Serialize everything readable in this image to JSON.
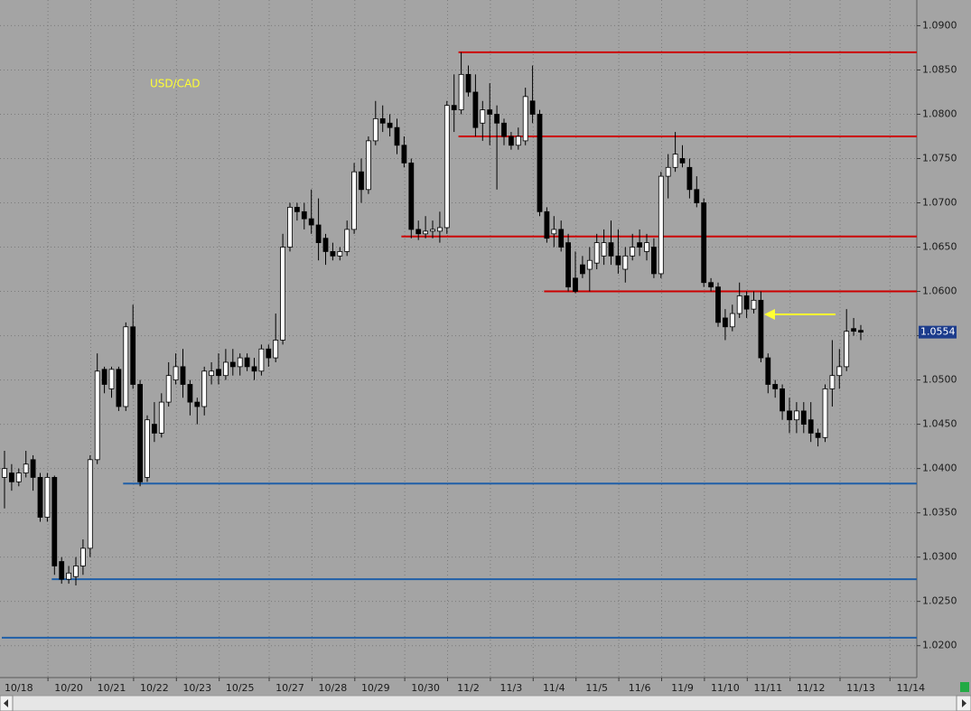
{
  "chart_data": {
    "type": "candlestick",
    "title": "USD/CAD",
    "categories": [
      null,
      null,
      "10/18",
      null,
      null,
      null,
      null,
      null,
      null,
      "10/20",
      null,
      null,
      null,
      null,
      null,
      "10/21",
      null,
      null,
      null,
      null,
      null,
      "10/22",
      null,
      null,
      null,
      null,
      null,
      "10/23",
      null,
      null,
      null,
      null,
      null,
      "10/25",
      null,
      null,
      null,
      null,
      null,
      null,
      "10/27",
      null,
      null,
      null,
      null,
      null,
      "10/28",
      null,
      null,
      null,
      null,
      null,
      "10/29",
      null,
      null,
      null,
      null,
      null,
      null,
      "10/30",
      null,
      null,
      null,
      null,
      null,
      "11/2",
      null,
      null,
      null,
      null,
      null,
      "11/3",
      null,
      null,
      null,
      null,
      null,
      "11/4",
      null,
      null,
      null,
      null,
      null,
      "11/5",
      null,
      null,
      null,
      null,
      null,
      "11/6",
      null,
      null,
      null,
      null,
      null,
      "11/9",
      null,
      null,
      null,
      null,
      null,
      "11/10",
      null,
      null,
      null,
      null,
      null,
      "11/11",
      null,
      null,
      null,
      null,
      null,
      "11/12",
      null,
      null,
      null,
      null,
      null,
      null,
      "11/13",
      null,
      null,
      null,
      null,
      null,
      null,
      "11/14"
    ],
    "open": [
      1.039,
      1.0395,
      1.0385,
      1.0395,
      1.041,
      1.039,
      1.0345,
      1.039,
      1.0295,
      1.0275,
      1.0278,
      1.029,
      1.031,
      1.041,
      1.0512,
      1.049,
      1.0512,
      1.047,
      1.056,
      1.0495,
      1.039,
      1.045,
      1.044,
      1.0475,
      1.05,
      1.0515,
      1.0495,
      1.0475,
      1.047,
      1.0505,
      1.0512,
      1.0505,
      1.052,
      1.0515,
      1.0525,
      1.0515,
      1.051,
      1.0535,
      1.0525,
      1.0545,
      1.065,
      1.0695,
      1.069,
      1.0682,
      1.0675,
      1.066,
      1.0645,
      1.064,
      1.0645,
      1.067,
      1.0735,
      1.0715,
      1.077,
      1.0795,
      1.079,
      1.0785,
      1.0765,
      1.0745,
      1.067,
      1.0665,
      1.0668,
      1.0668,
      1.0672,
      1.081,
      1.0805,
      1.0845,
      1.0825,
      1.079,
      1.0805,
      1.08,
      1.079,
      1.0775,
      1.0765,
      1.077,
      1.0815,
      1.08,
      1.069,
      1.0665,
      1.067,
      1.0655,
      1.0615,
      1.063,
      1.0625,
      1.0632,
      1.064,
      1.0655,
      1.064,
      1.0625,
      1.064,
      1.0655,
      1.0645,
      1.065,
      1.062,
      1.073,
      1.074,
      1.075,
      1.074,
      1.0715,
      1.07,
      1.061,
      1.0605,
      1.057,
      1.056,
      1.0575,
      1.0595,
      1.058,
      1.059,
      1.0525,
      1.0495,
      1.049,
      1.0465,
      1.0455,
      1.0465,
      1.0455,
      1.044,
      1.0435,
      1.049,
      1.0505,
      1.0515,
      1.0558,
      1.0556,
      null,
      null,
      null,
      null,
      null,
      null,
      null
    ],
    "high": [
      1.042,
      1.0405,
      1.04,
      1.042,
      1.0415,
      1.0395,
      1.0395,
      1.0392,
      1.03,
      1.029,
      1.03,
      1.032,
      1.0415,
      1.053,
      1.0515,
      1.0515,
      1.0515,
      1.0565,
      1.0585,
      1.05,
      1.046,
      1.0475,
      1.0485,
      1.052,
      1.053,
      1.0535,
      1.05,
      1.048,
      1.0515,
      1.052,
      1.053,
      1.0535,
      1.0535,
      1.053,
      1.053,
      1.0525,
      1.054,
      1.054,
      1.0575,
      1.0665,
      1.07,
      1.07,
      1.07,
      1.0715,
      1.0705,
      1.0665,
      1.0655,
      1.065,
      1.068,
      1.0745,
      1.075,
      1.0775,
      1.0815,
      1.081,
      1.08,
      1.0795,
      1.0775,
      1.075,
      1.068,
      1.0685,
      1.068,
      1.069,
      1.0815,
      1.0845,
      1.087,
      1.0855,
      1.0845,
      1.0815,
      1.0835,
      1.081,
      1.0795,
      1.078,
      1.0785,
      1.083,
      1.0855,
      1.0805,
      1.0695,
      1.0685,
      1.068,
      1.0665,
      1.0645,
      1.064,
      1.065,
      1.0665,
      1.067,
      1.068,
      1.067,
      1.065,
      1.0665,
      1.067,
      1.0665,
      1.066,
      1.0735,
      1.0755,
      1.078,
      1.0765,
      1.075,
      1.073,
      1.0705,
      1.0615,
      1.061,
      1.058,
      1.0585,
      1.061,
      1.06,
      1.06,
      1.06,
      1.053,
      1.05,
      1.0495,
      1.048,
      1.0475,
      1.0475,
      1.0475,
      1.0445,
      1.0495,
      1.0545,
      1.0535,
      1.058,
      1.057,
      1.0562,
      null,
      null,
      null,
      null,
      null,
      null,
      null
    ],
    "low": [
      1.0355,
      1.0375,
      1.038,
      1.039,
      1.0375,
      1.034,
      1.034,
      1.028,
      1.027,
      1.027,
      1.0268,
      1.028,
      1.03,
      1.0405,
      1.0485,
      1.048,
      1.0465,
      1.0465,
      1.049,
      1.038,
      1.0385,
      1.043,
      1.0435,
      1.047,
      1.0495,
      1.048,
      1.046,
      1.045,
      1.046,
      1.0495,
      1.0495,
      1.05,
      1.0505,
      1.0505,
      1.051,
      1.05,
      1.0505,
      1.0515,
      1.052,
      1.054,
      1.0645,
      1.068,
      1.067,
      1.0665,
      1.0635,
      1.063,
      1.0635,
      1.0635,
      1.064,
      1.0665,
      1.07,
      1.071,
      1.0765,
      1.078,
      1.0775,
      1.0755,
      1.074,
      1.066,
      1.0658,
      1.066,
      1.066,
      1.0655,
      1.0665,
      1.078,
      1.08,
      1.082,
      1.0775,
      1.077,
      1.0765,
      1.0715,
      1.0765,
      1.076,
      1.076,
      1.0765,
      1.079,
      1.0685,
      1.0655,
      1.065,
      1.0645,
      1.06,
      1.0598,
      1.0615,
      1.06,
      1.0625,
      1.063,
      1.063,
      1.062,
      1.061,
      1.0635,
      1.064,
      1.0635,
      1.0615,
      1.0615,
      1.0705,
      1.0735,
      1.074,
      1.0705,
      1.0695,
      1.0605,
      1.06,
      1.056,
      1.0545,
      1.0555,
      1.057,
      1.057,
      1.0575,
      1.052,
      1.0485,
      1.048,
      1.0455,
      1.044,
      1.044,
      1.044,
      1.043,
      1.0425,
      1.043,
      1.047,
      1.049,
      1.051,
      1.055,
      1.0545,
      null,
      null,
      null,
      null,
      null,
      null,
      null
    ],
    "close": [
      1.04,
      1.0385,
      1.0395,
      1.0405,
      1.039,
      1.0345,
      1.039,
      1.029,
      1.0275,
      1.0282,
      1.029,
      1.031,
      1.041,
      1.051,
      1.0495,
      1.0512,
      1.047,
      1.056,
      1.0495,
      1.0385,
      1.0455,
      1.044,
      1.0475,
      1.0505,
      1.0515,
      1.0495,
      1.0475,
      1.047,
      1.051,
      1.051,
      1.0505,
      1.052,
      1.0515,
      1.0525,
      1.0515,
      1.051,
      1.0535,
      1.0525,
      1.0545,
      1.065,
      1.0695,
      1.069,
      1.0682,
      1.0675,
      1.0655,
      1.0645,
      1.064,
      1.0645,
      1.067,
      1.0735,
      1.0715,
      1.077,
      1.0795,
      1.079,
      1.0785,
      1.0765,
      1.0745,
      1.067,
      1.0665,
      1.0668,
      1.067,
      1.0672,
      1.081,
      1.0805,
      1.0845,
      1.0825,
      1.0785,
      1.0805,
      1.08,
      1.079,
      1.0775,
      1.0765,
      1.0775,
      1.082,
      1.08,
      1.069,
      1.066,
      1.067,
      1.065,
      1.0605,
      1.06,
      1.062,
      1.0635,
      1.0655,
      1.0655,
      1.064,
      1.063,
      1.064,
      1.065,
      1.065,
      1.0655,
      1.062,
      1.073,
      1.074,
      1.0755,
      1.0745,
      1.0715,
      1.07,
      1.061,
      1.0605,
      1.0565,
      1.056,
      1.0575,
      1.0595,
      1.058,
      1.059,
      1.0525,
      1.0495,
      1.049,
      1.0465,
      1.0455,
      1.0465,
      1.045,
      1.044,
      1.0435,
      1.049,
      1.0505,
      1.0515,
      1.0555,
      1.0555,
      1.0554,
      null,
      null,
      null,
      null,
      null,
      null,
      null
    ],
    "up_color": "#ffffff",
    "down_color": "#000000",
    "ylim": [
      1.0164,
      1.0929
    ],
    "yticks": [
      {
        "value": 1.02,
        "label": "1.0200"
      },
      {
        "value": 1.025,
        "label": "1.0250"
      },
      {
        "value": 1.03,
        "label": "1.0300"
      },
      {
        "value": 1.035,
        "label": "1.0350"
      },
      {
        "value": 1.04,
        "label": "1.0400"
      },
      {
        "value": 1.045,
        "label": "1.0450"
      },
      {
        "value": 1.05,
        "label": "1.0500"
      },
      {
        "value": 1.055,
        "label": "1.0550"
      },
      {
        "value": 1.06,
        "label": "1.0600"
      },
      {
        "value": 1.065,
        "label": "1.0650"
      },
      {
        "value": 1.07,
        "label": "1.0700"
      },
      {
        "value": 1.075,
        "label": "1.0750"
      },
      {
        "value": 1.08,
        "label": "1.0800"
      },
      {
        "value": 1.085,
        "label": "1.0850"
      },
      {
        "value": 1.09,
        "label": "1.0900"
      }
    ],
    "grid": true,
    "last": 1.0554,
    "hlines": [
      {
        "value": 1.087,
        "color": "#cc0000",
        "from": 64
      },
      {
        "value": 1.0775,
        "color": "#cc0000",
        "from": 64
      },
      {
        "value": 1.0662,
        "color": "#cc0000",
        "from": 56
      },
      {
        "value": 1.06,
        "color": "#cc0000",
        "from": 76
      },
      {
        "value": 1.0383,
        "color": "#1f5fa8",
        "from": 17
      },
      {
        "value": 1.0275,
        "color": "#1f5fa8",
        "from": 7
      },
      {
        "value": 1.0209,
        "color": "#1f5fa8",
        "from": 0
      }
    ]
  }
}
